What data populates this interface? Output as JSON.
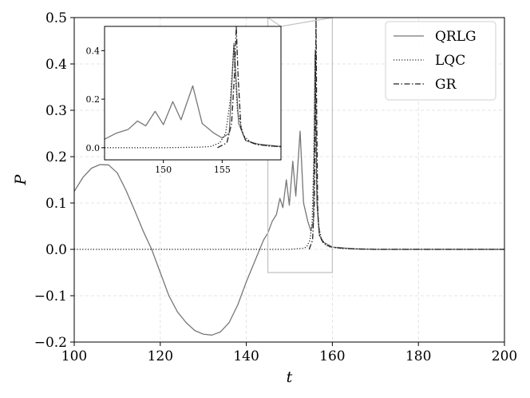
{
  "chart_data": {
    "type": "line",
    "xlabel": "t",
    "ylabel": "P",
    "xlim": [
      100,
      200
    ],
    "ylim": [
      -0.2,
      0.5
    ],
    "x_ticks": [
      100,
      120,
      140,
      160,
      180,
      200
    ],
    "y_ticks": [
      -0.2,
      -0.1,
      0.0,
      0.1,
      0.2,
      0.3,
      0.4,
      0.5
    ],
    "x_tick_labels": [
      "100",
      "120",
      "140",
      "160",
      "180",
      "200"
    ],
    "y_tick_labels": [
      "−0.2",
      "−0.1",
      "0.0",
      "0.1",
      "0.2",
      "0.3",
      "0.4",
      "0.5"
    ],
    "grid": true,
    "legend_position": "top-right",
    "series": [
      {
        "name": "QRLG",
        "style": "solid",
        "color": "#777777",
        "points": [
          [
            100,
            0.125
          ],
          [
            102,
            0.155
          ],
          [
            104,
            0.175
          ],
          [
            106,
            0.183
          ],
          [
            108,
            0.182
          ],
          [
            110,
            0.165
          ],
          [
            112,
            0.128
          ],
          [
            114,
            0.085
          ],
          [
            116,
            0.04
          ],
          [
            118,
            0.0
          ],
          [
            120,
            -0.05
          ],
          [
            122,
            -0.1
          ],
          [
            124,
            -0.135
          ],
          [
            126,
            -0.158
          ],
          [
            128,
            -0.175
          ],
          [
            130,
            -0.183
          ],
          [
            132,
            -0.185
          ],
          [
            134,
            -0.178
          ],
          [
            136,
            -0.158
          ],
          [
            138,
            -0.12
          ],
          [
            140,
            -0.07
          ],
          [
            142,
            -0.025
          ],
          [
            144,
            0.02
          ],
          [
            145,
            0.035
          ],
          [
            146,
            0.06
          ],
          [
            147,
            0.075
          ],
          [
            147.8,
            0.11
          ],
          [
            148.5,
            0.09
          ],
          [
            149.3,
            0.15
          ],
          [
            150,
            0.095
          ],
          [
            150.8,
            0.19
          ],
          [
            151.5,
            0.115
          ],
          [
            152.5,
            0.255
          ],
          [
            153.3,
            0.1
          ],
          [
            154.3,
            0.06
          ],
          [
            155,
            0.04
          ],
          [
            155.6,
            0.06
          ],
          [
            156,
            0.43
          ],
          [
            156.4,
            0.1
          ],
          [
            157,
            0.03
          ],
          [
            158,
            0.015
          ],
          [
            160,
            0.005
          ],
          [
            165,
            0.001
          ],
          [
            170,
            0.0
          ],
          [
            200,
            0.0
          ]
        ]
      },
      {
        "name": "LQC",
        "style": "dotted",
        "color": "#222222",
        "points": [
          [
            100,
            0.0
          ],
          [
            130,
            0.0
          ],
          [
            150,
            0.0
          ],
          [
            153,
            0.002
          ],
          [
            154,
            0.005
          ],
          [
            154.8,
            0.02
          ],
          [
            155.3,
            0.06
          ],
          [
            155.7,
            0.2
          ],
          [
            156,
            0.42
          ],
          [
            156.3,
            0.15
          ],
          [
            156.8,
            0.05
          ],
          [
            157.5,
            0.02
          ],
          [
            159,
            0.006
          ],
          [
            162,
            0.002
          ],
          [
            170,
            0.0
          ],
          [
            200,
            0.0
          ]
        ]
      },
      {
        "name": "GR",
        "style": "dashdot",
        "color": "#222222",
        "points": [
          [
            154.6,
            0.0
          ],
          [
            155.4,
            0.02
          ],
          [
            155.8,
            0.1
          ],
          [
            156.05,
            0.3
          ],
          [
            156.2,
            0.5
          ],
          [
            156.35,
            0.3
          ],
          [
            156.6,
            0.08
          ],
          [
            157,
            0.03
          ],
          [
            158,
            0.012
          ],
          [
            160,
            0.004
          ],
          [
            165,
            0.001
          ],
          [
            170,
            0.0
          ],
          [
            200,
            0.0
          ]
        ]
      }
    ],
    "inset": {
      "xlim": [
        145,
        160
      ],
      "ylim": [
        -0.05,
        0.5
      ],
      "x_ticks": [
        150,
        155
      ],
      "y_ticks": [
        0.0,
        0.2,
        0.4
      ],
      "x_tick_labels": [
        "150",
        "155"
      ],
      "y_tick_labels": [
        "0.0",
        "0.2",
        "0.4"
      ]
    }
  }
}
